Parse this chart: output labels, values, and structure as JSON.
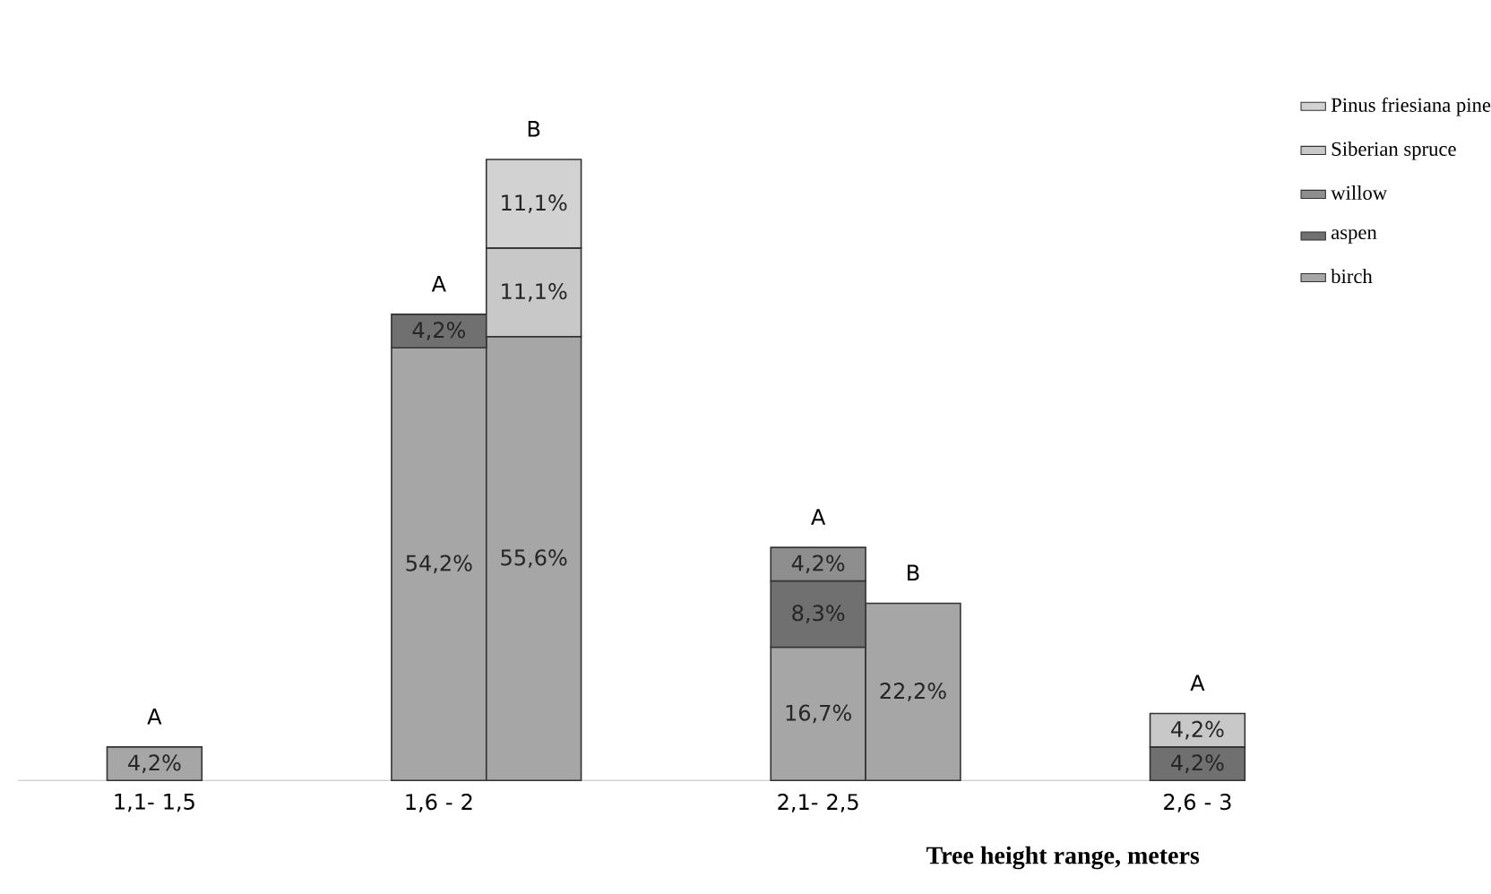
{
  "chart_data": {
    "type": "bar",
    "stacked": true,
    "xlabel": "Tree height range, meters",
    "categories": [
      "1,1- 1,5",
      null,
      null,
      "1,6 - 2",
      null,
      null,
      null,
      "2,1- 2,5",
      null,
      null,
      null,
      "2,6 - 3"
    ],
    "series": [
      {
        "name": "birch",
        "color": "#a6a6a6",
        "values": [
          4.2,
          null,
          null,
          54.2,
          55.6,
          null,
          null,
          16.7,
          22.2,
          null,
          null,
          null
        ],
        "value_labels": [
          "4,2%",
          null,
          null,
          "54,2%",
          "55,6%",
          null,
          null,
          "16,7%",
          "22,2%",
          null,
          null,
          null
        ]
      },
      {
        "name": "aspen",
        "color": "#707070",
        "values": [
          null,
          null,
          null,
          4.2,
          null,
          null,
          null,
          8.3,
          null,
          null,
          null,
          4.2
        ],
        "value_labels": [
          null,
          null,
          null,
          "4,2%",
          null,
          null,
          null,
          "8,3%",
          null,
          null,
          null,
          "4,2%"
        ]
      },
      {
        "name": "willow",
        "color": "#8e8e8e",
        "values": [
          null,
          null,
          null,
          null,
          null,
          null,
          null,
          4.2,
          null,
          null,
          null,
          null
        ],
        "value_labels": [
          null,
          null,
          null,
          null,
          null,
          null,
          null,
          "4,2%",
          null,
          null,
          null,
          null
        ]
      },
      {
        "name": "Siberian spruce",
        "color": "#c8c8c8",
        "values": [
          null,
          null,
          null,
          null,
          11.1,
          null,
          null,
          null,
          null,
          null,
          null,
          4.2
        ],
        "value_labels": [
          null,
          null,
          null,
          null,
          "11,1%",
          null,
          null,
          null,
          null,
          null,
          null,
          "4,2%"
        ]
      },
      {
        "name": "Pinus friesiana pine",
        "color": "#d2d2d2",
        "values": [
          null,
          null,
          null,
          null,
          11.1,
          null,
          null,
          null,
          null,
          null,
          null,
          null
        ],
        "value_labels": [
          null,
          null,
          null,
          null,
          "11,1%",
          null,
          null,
          null,
          null,
          null,
          null,
          null
        ]
      }
    ],
    "annotations": [
      "A",
      "A",
      "B",
      "A",
      "B",
      "A"
    ],
    "legend": "right"
  }
}
